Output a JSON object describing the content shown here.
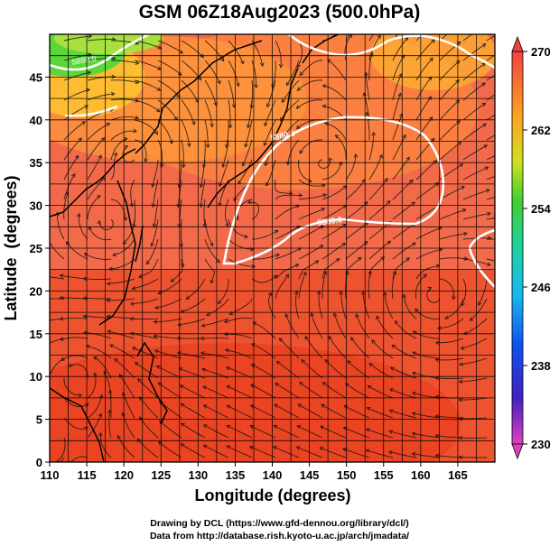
{
  "title": "GSM 06Z18Aug2023 (500.0hPa)",
  "axes": {
    "xlabel": "Longitude (degrees)",
    "ylabel": "Latitude  (degrees)",
    "xlim": [
      110,
      170
    ],
    "ylim": [
      0,
      50
    ],
    "xticks": [
      "110",
      "115",
      "120",
      "125",
      "130",
      "135",
      "140",
      "145",
      "150",
      "155",
      "160",
      "165"
    ],
    "yticks": [
      "0",
      "5",
      "10",
      "15",
      "20",
      "25",
      "30",
      "35",
      "40",
      "45"
    ]
  },
  "colorbar": {
    "labels": [
      "270",
      "262",
      "254",
      "246",
      "238",
      "230"
    ],
    "range": [
      230,
      270
    ]
  },
  "contour_labels": [
    "5880.0",
    "5880.0",
    "5880.0"
  ],
  "credits": {
    "line1": "Drawing by DCL (https://www.gfd-dennou.org/library/dcl/)",
    "line2": "Data from http://database.rish.kyoto-u.ac.jp/arch/jmadata/"
  },
  "colors": {
    "field_main": "#f26a4a",
    "field_warm": "#ea3f1f",
    "field_cool": "#ffa43a",
    "field_green": "#5dd63a",
    "contour": "#ffffff"
  }
}
